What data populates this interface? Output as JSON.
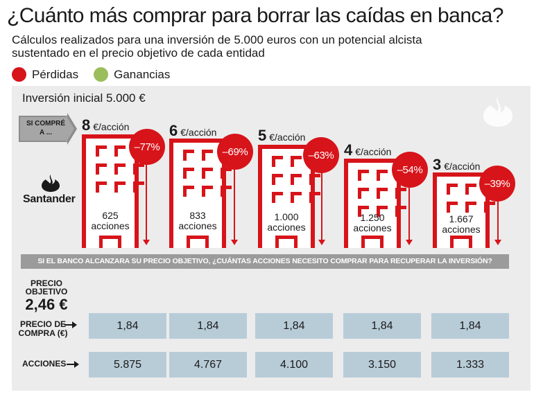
{
  "header": {
    "title": "¿Cuánto más comprar para borrar las caídas en banca?",
    "subtitle": "Cálculos realizados para una inversión de 5.000 euros con un potencial alcista sustentado en el precio objetivo de cada entidad"
  },
  "legend": [
    {
      "label": "Pérdidas",
      "color": "#d7141a"
    },
    {
      "label": "Ganancias",
      "color": "#9bbd5e"
    }
  ],
  "panel": {
    "initial_investment": "Inversión inicial 5.000 €",
    "bought_at_tag": "SI COMPRÉ A ...",
    "brand": "Santander",
    "brand_icon": "santander-flame-icon",
    "price_unit": "€/acción",
    "banner": "SI EL BANCO ALCANZARA SU PRECIO OBJETIVO, ¿CUÁNTAS ACCIONES NECESITO COMPRAR PARA RECUPERAR LA INVERSIÓN?",
    "target_label": "PRECIO OBJETIVO",
    "target_value": "2,46 €",
    "purchase_price_label": "PRECIO DE COMPRA (€)",
    "shares_label": "ACCIONES"
  },
  "scenarios": [
    {
      "buy_price": "8",
      "shares_count": "625",
      "shares_unit": "acciones",
      "loss": "–77%",
      "purchase_price": "1,84",
      "shares_needed": "5.875"
    },
    {
      "buy_price": "6",
      "shares_count": "833",
      "shares_unit": "acciones",
      "loss": "–69%",
      "purchase_price": "1,84",
      "shares_needed": "4.767"
    },
    {
      "buy_price": "5",
      "shares_count": "1.000",
      "shares_unit": "acciones",
      "loss": "–63%",
      "purchase_price": "1,84",
      "shares_needed": "4.100"
    },
    {
      "buy_price": "4",
      "shares_count": "1.250",
      "shares_unit": "acciones",
      "loss": "–54%",
      "purchase_price": "1,84",
      "shares_needed": "3.150"
    },
    {
      "buy_price": "3",
      "shares_count": "1.667",
      "shares_unit": "acciones",
      "loss": "–39%",
      "purchase_price": "1,84",
      "shares_needed": "1.333"
    }
  ]
}
